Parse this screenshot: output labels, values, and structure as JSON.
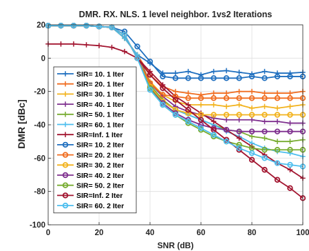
{
  "chart_data": {
    "type": "line",
    "title": "DMR. RX. NLS. 1 level neighbor. 1vs2 Iterations",
    "xlabel": "SNR (dB)",
    "ylabel": "DMR [dBc]",
    "xlim": [
      0,
      100
    ],
    "ylim": [
      -100,
      20
    ],
    "xticks": [
      "0",
      "20",
      "40",
      "60",
      "80",
      "100"
    ],
    "yticks": [
      "-100",
      "-80",
      "-60",
      "-40",
      "-20",
      "0",
      "20"
    ],
    "grid": true,
    "legend_position": "left",
    "x": [
      0,
      5,
      10,
      15,
      20,
      25,
      30,
      35,
      40,
      45,
      50,
      55,
      60,
      65,
      70,
      75,
      80,
      85,
      90,
      95,
      100
    ],
    "series": [
      {
        "name": "SIR= 10. 1 Iter",
        "color": "#1f6fbf",
        "marker": "+",
        "values": [
          19.5,
          19.5,
          19.5,
          19.5,
          19,
          18.5,
          12,
          2,
          -3,
          -9,
          -9,
          -8,
          -10,
          -8,
          -7.5,
          -8.5,
          -9.5,
          -8,
          -9,
          -9,
          -8.5
        ]
      },
      {
        "name": "SIR= 20. 1 Iter",
        "color": "#f06c1f",
        "marker": "+",
        "values": [
          19.5,
          19.5,
          19.5,
          19.5,
          19,
          18.5,
          12,
          2,
          -10,
          -17,
          -20,
          -21,
          -22,
          -21,
          -21,
          -20,
          -20,
          -21,
          -21,
          -21,
          -20
        ]
      },
      {
        "name": "SIR= 30. 1 Iter",
        "color": "#f2b21c",
        "marker": "+",
        "values": [
          19.5,
          19.5,
          19.5,
          19.5,
          19,
          18.5,
          12,
          2,
          -14,
          -22,
          -26,
          -28,
          -28,
          -28,
          -29,
          -28,
          -30,
          -29,
          -30,
          -29,
          -28
        ]
      },
      {
        "name": "SIR= 40. 1 Iter",
        "color": "#7e2f8e",
        "marker": "+",
        "values": [
          19.5,
          19.5,
          19.5,
          19.5,
          19,
          18.5,
          12,
          2,
          -15,
          -23,
          -29,
          -32,
          -34,
          -36,
          -37,
          -37,
          -37,
          -38,
          -38,
          -39,
          -39
        ]
      },
      {
        "name": "SIR= 50. 1 Iter",
        "color": "#77ac30",
        "marker": "+",
        "values": [
          19.5,
          19.5,
          19.5,
          19.5,
          19,
          18.5,
          12,
          2,
          -16,
          -25,
          -31,
          -34,
          -37,
          -40,
          -43,
          -44,
          -47,
          -48,
          -50,
          -50,
          -49
        ]
      },
      {
        "name": "SIR= 60. 1 Iter",
        "color": "#4dbeee",
        "marker": "+",
        "values": [
          19.5,
          19.5,
          19.5,
          19.5,
          19,
          18.5,
          12,
          2,
          -17,
          -26,
          -31,
          -34,
          -37,
          -40,
          -44,
          -47,
          -51,
          -54,
          -56,
          -57,
          -59
        ]
      },
      {
        "name": "SIR=Inf. 1 Iter",
        "color": "#a2142f",
        "marker": "+",
        "values": [
          8.5,
          8.5,
          8.5,
          8,
          7.5,
          6.5,
          4,
          0,
          -8,
          -16,
          -23,
          -28,
          -33,
          -38,
          -43,
          -48,
          -53,
          -58,
          -63,
          -67,
          -72
        ]
      },
      {
        "name": "SIR= 10. 2 Iter",
        "color": "#1f6fbf",
        "marker": "o",
        "values": [
          19.5,
          19.5,
          19.5,
          19.5,
          19,
          18.5,
          16,
          7,
          -2,
          -11,
          -12,
          -12,
          -12,
          -12,
          -12,
          -12,
          -11,
          -12,
          -11,
          -11,
          -11
        ]
      },
      {
        "name": "SIR= 20. 2 Iter",
        "color": "#f06c1f",
        "marker": "o",
        "values": [
          19.5,
          19.5,
          19.5,
          19.5,
          19,
          18.5,
          14,
          0,
          -15,
          -22,
          -23,
          -24,
          -24,
          -24,
          -24,
          -24,
          -24,
          -24,
          -24,
          -24,
          -24
        ]
      },
      {
        "name": "SIR= 30. 2 Iter",
        "color": "#f2b21c",
        "marker": "o",
        "values": [
          19.5,
          19.5,
          19.5,
          19.5,
          19,
          18.5,
          14,
          0,
          -17,
          -26,
          -31,
          -33,
          -34,
          -34,
          -34,
          -34,
          -34,
          -34,
          -34,
          -34,
          -34
        ]
      },
      {
        "name": "SIR= 40. 2 Iter",
        "color": "#7e2f8e",
        "marker": "o",
        "values": [
          19.5,
          19.5,
          19.5,
          19.5,
          19,
          18.5,
          14,
          0,
          -18,
          -27,
          -33,
          -37,
          -40,
          -42,
          -43,
          -44,
          -44,
          -44,
          -44,
          -44,
          -44
        ]
      },
      {
        "name": "SIR= 50. 2 Iter",
        "color": "#77ac30",
        "marker": "o",
        "values": [
          19.5,
          19.5,
          19.5,
          19.5,
          19,
          18.5,
          14,
          0,
          -18,
          -28,
          -34,
          -39,
          -43,
          -47,
          -50,
          -52,
          -54,
          -55,
          -55,
          -55,
          -55
        ]
      },
      {
        "name": "SIR=Inf. 2 Iter",
        "color": "#a2142f",
        "marker": "o",
        "values": [
          19.5,
          19.5,
          19.5,
          19.5,
          19,
          18.5,
          14,
          0,
          -10,
          -18,
          -25,
          -31,
          -37,
          -43,
          -49,
          -55,
          -61,
          -67,
          -73,
          -78,
          -84
        ]
      },
      {
        "name": "SIR= 60. 2 Iter",
        "color": "#4dbeee",
        "marker": "o",
        "values": [
          19.5,
          19.5,
          19.5,
          19.5,
          19,
          18.5,
          14,
          0,
          -19,
          -28,
          -34,
          -38,
          -42,
          -46,
          -50,
          -54,
          -57,
          -60,
          -63,
          -64,
          -65
        ]
      }
    ]
  }
}
